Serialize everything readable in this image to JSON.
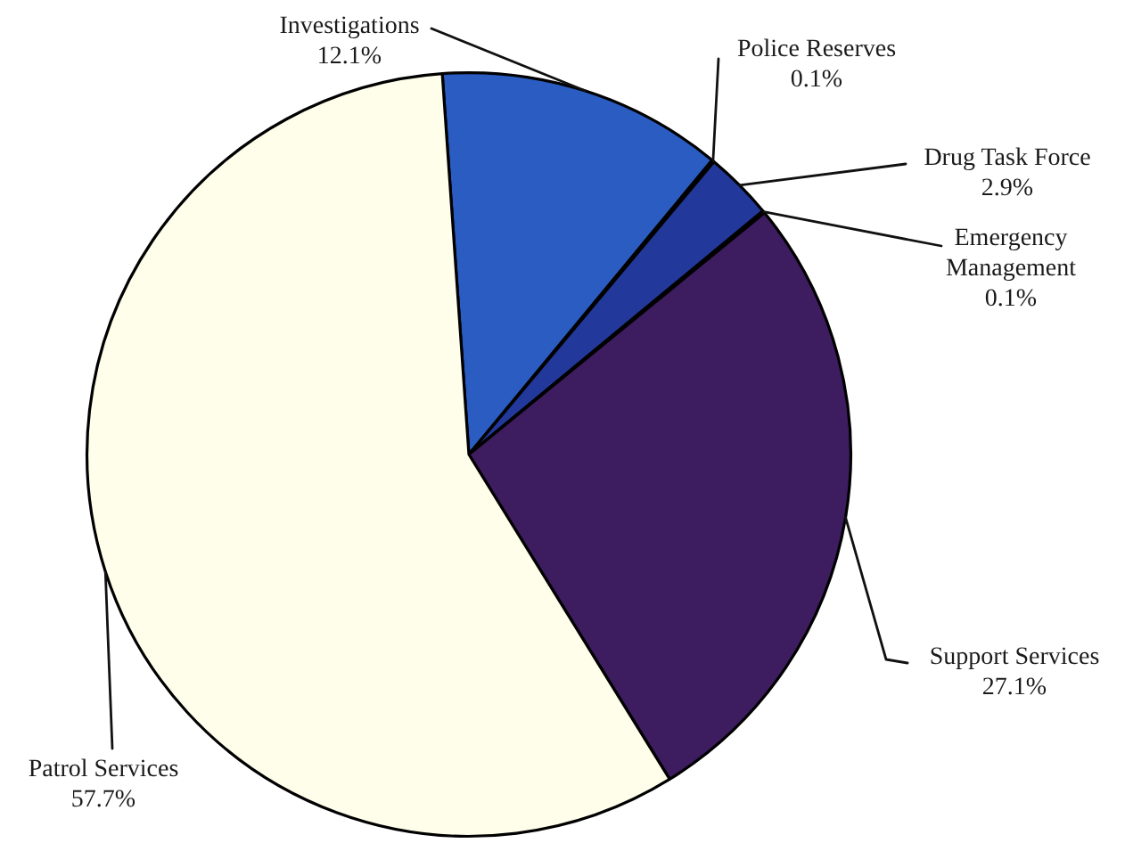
{
  "chart_data": {
    "type": "pie",
    "categories": [
      "Investigations",
      "Police Reserves",
      "Drug Task Force",
      "Emergency Management",
      "Support Services",
      "Patrol Services"
    ],
    "values": [
      12.1,
      0.1,
      2.9,
      0.1,
      27.1,
      57.7
    ],
    "colors": [
      "#2a5cc2",
      "#2547a8",
      "#22389a",
      "#2e2a78",
      "#3d1c5f",
      "#fffeea"
    ],
    "value_labels": [
      "12.1%",
      "0.1%",
      "2.9%",
      "0.1%",
      "27.1%",
      "57.7%"
    ]
  }
}
